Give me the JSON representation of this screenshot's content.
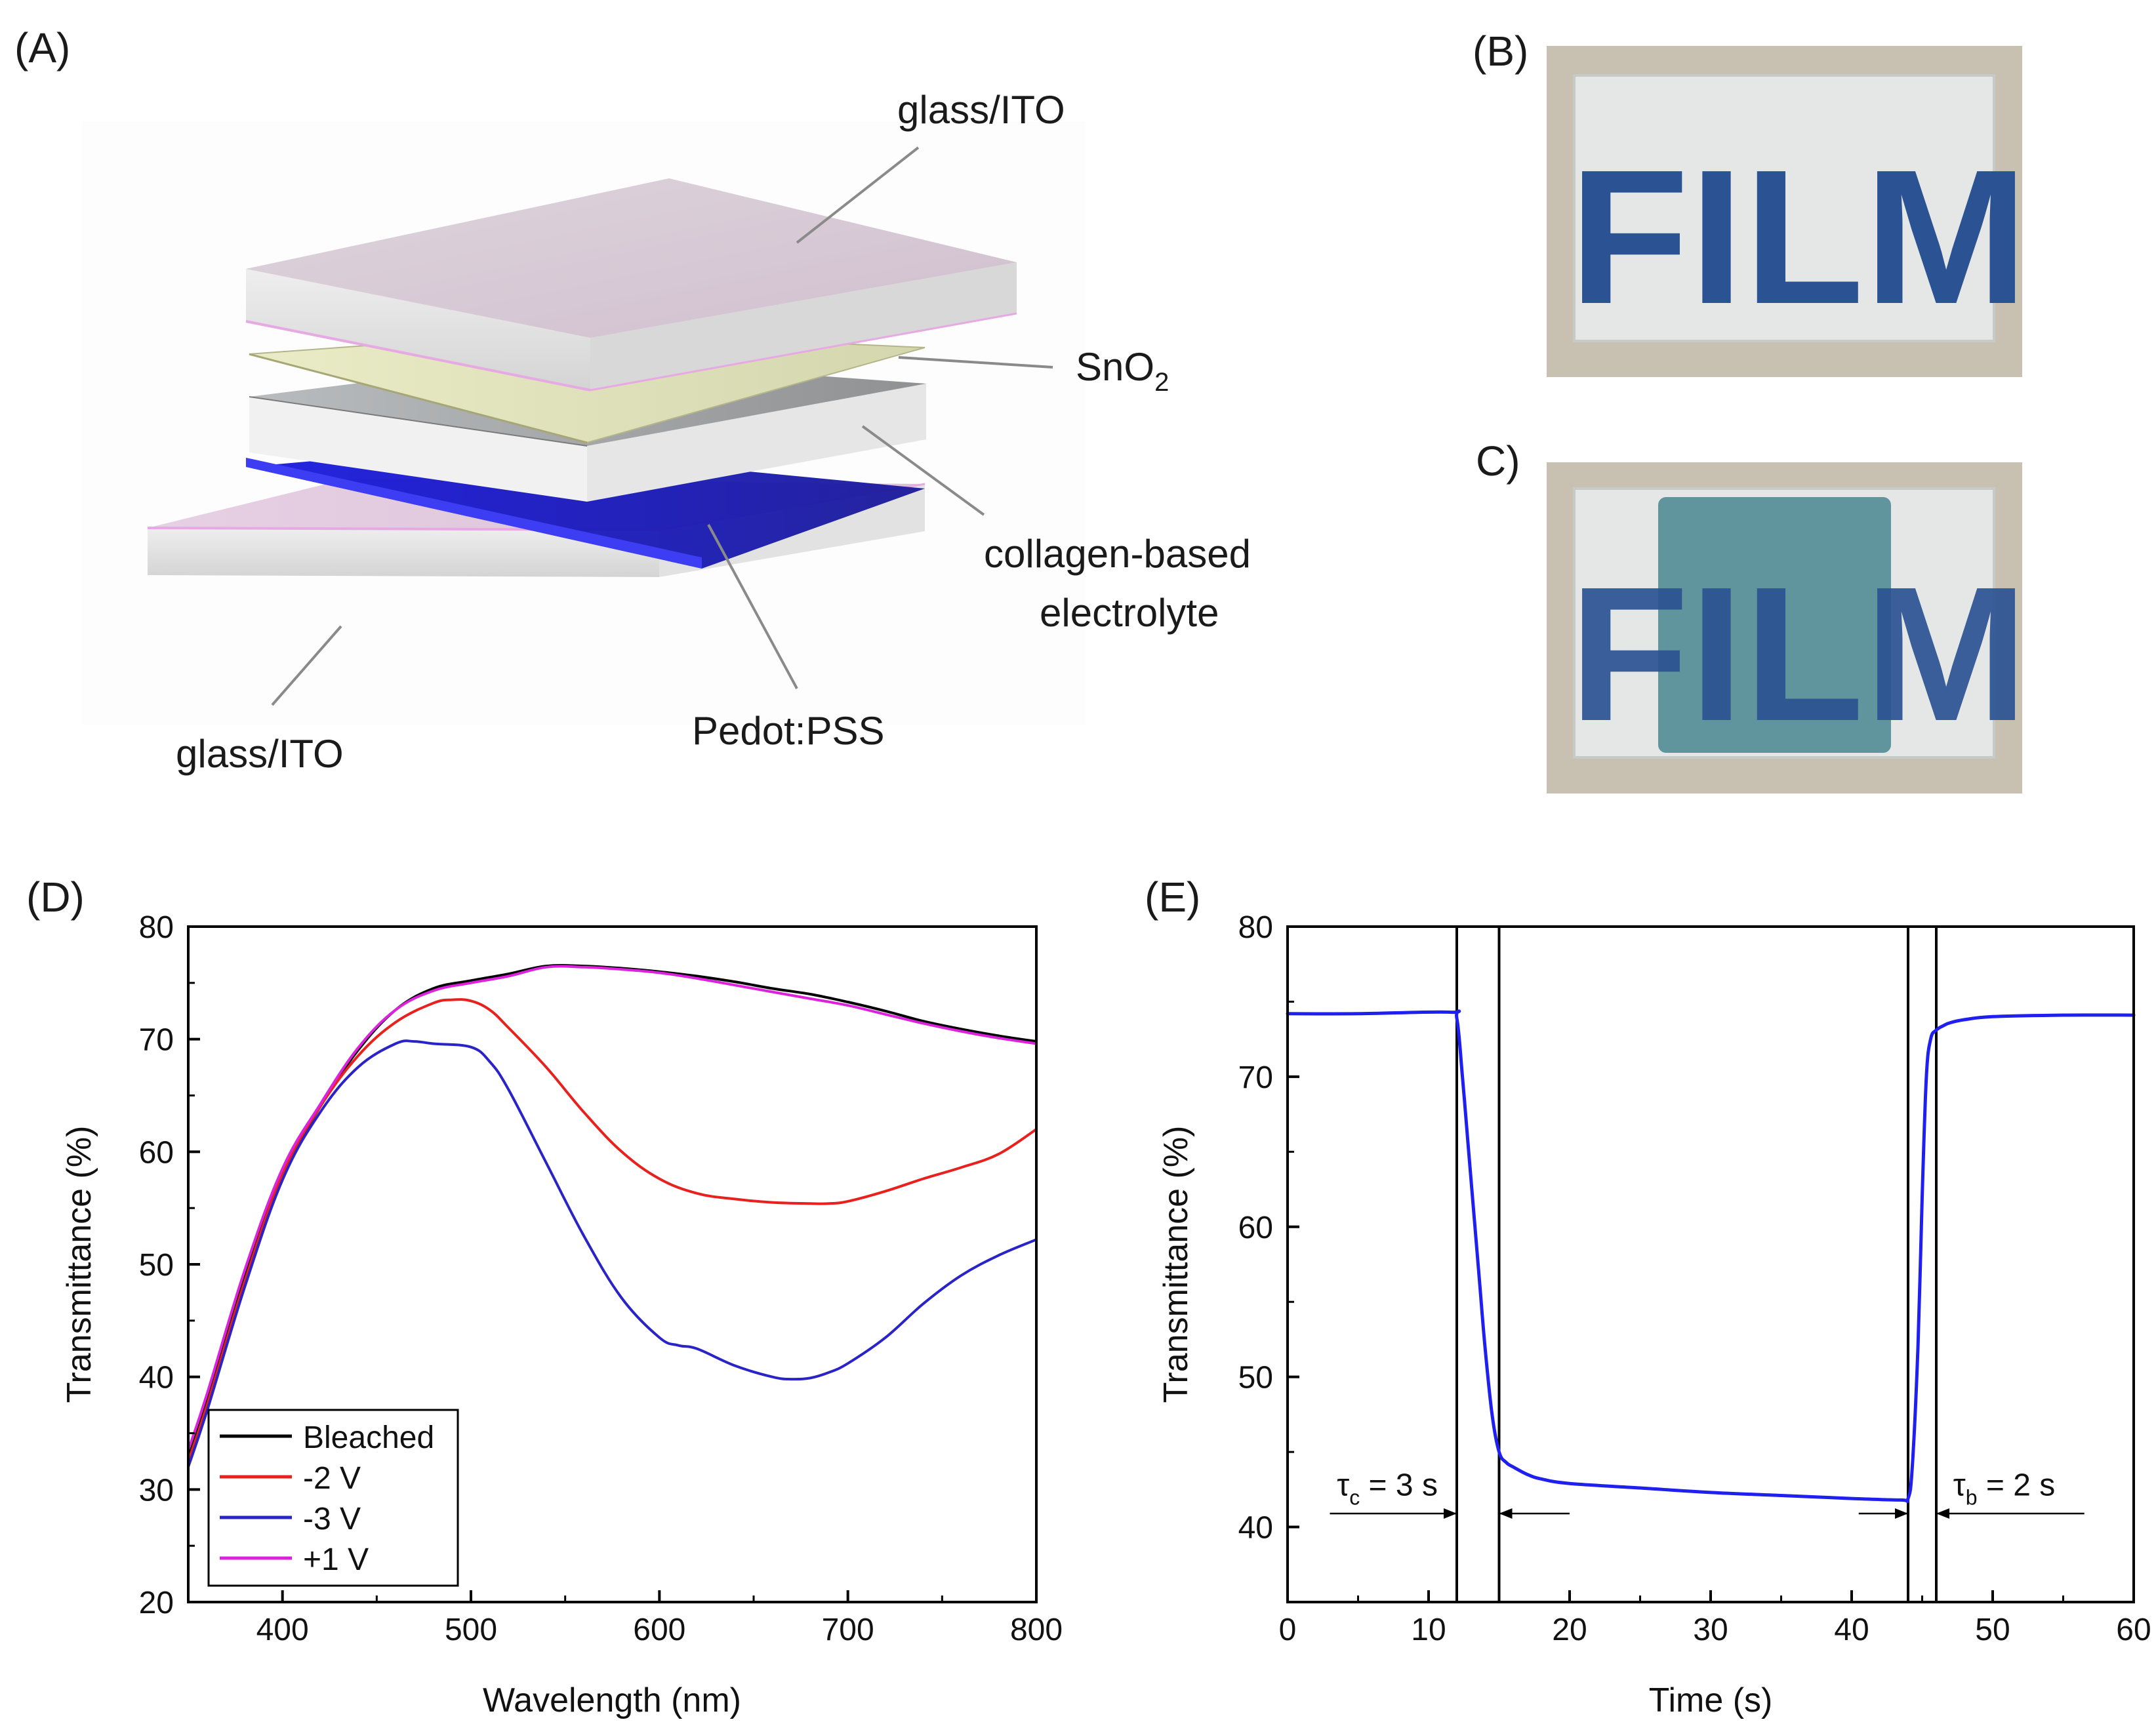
{
  "panels": {
    "a": "(A)",
    "b": "(B)",
    "c": "C)",
    "d": "(D)",
    "e": "(E)"
  },
  "diagram": {
    "labels": {
      "top_glass": "glass/ITO",
      "sno2": "SnO",
      "sno2_sub": "2",
      "electrolyte_line1": "collagen-based",
      "electrolyte_line2": "electrolyte",
      "pedot": "Pedot:PSS",
      "bottom_glass": "glass/ITO"
    }
  },
  "photos": {
    "b_text": "FILM",
    "c_text": "FILM"
  },
  "colors": {
    "black": "#000000",
    "red": "#e8201e",
    "blue": "#2a24c8",
    "magenta": "#dd22dd",
    "time_blue": "#1f1ff0",
    "photo_frame": "#cfc9b8",
    "photo_glass": "#e3e6e4",
    "photo_letters": "#2b5393",
    "photo_colored": "#4d8a94"
  },
  "chart_data": [
    {
      "type": "line",
      "title": "",
      "xlabel": "Wavelength (nm)",
      "ylabel": "Transmittance (%)",
      "xlim": [
        350,
        800
      ],
      "ylim": [
        20,
        80
      ],
      "xticks": [
        400,
        500,
        600,
        700,
        800
      ],
      "yticks": [
        20,
        30,
        40,
        50,
        60,
        70,
        80
      ],
      "legend_position": "bottom-left",
      "series": [
        {
          "name": "Bleached",
          "color": "#000000",
          "x": [
            350,
            360,
            380,
            400,
            420,
            440,
            460,
            480,
            500,
            520,
            540,
            560,
            580,
            600,
            620,
            640,
            660,
            680,
            700,
            720,
            740,
            760,
            780,
            800
          ],
          "y": [
            33,
            38,
            49,
            58,
            64,
            69,
            72.6,
            74.5,
            75.2,
            75.8,
            76.5,
            76.5,
            76.3,
            76,
            75.6,
            75.1,
            74.5,
            74,
            73.3,
            72.5,
            71.6,
            70.9,
            70.3,
            69.8
          ]
        },
        {
          "name": "-2 V",
          "color": "#e8201e",
          "x": [
            350,
            360,
            380,
            400,
            420,
            440,
            460,
            480,
            490,
            500,
            510,
            520,
            540,
            560,
            580,
            600,
            620,
            640,
            660,
            680,
            690,
            700,
            720,
            740,
            760,
            780,
            800
          ],
          "y": [
            32.5,
            37.5,
            48.5,
            58,
            64,
            68.5,
            71.5,
            73.2,
            73.5,
            73.4,
            72.6,
            71,
            67.5,
            63.5,
            60,
            57.6,
            56.3,
            55.8,
            55.5,
            55.4,
            55.4,
            55.6,
            56.5,
            57.6,
            58.6,
            59.8,
            62
          ]
        },
        {
          "name": "-3 V",
          "color": "#2a24c8",
          "x": [
            350,
            360,
            380,
            400,
            420,
            440,
            460,
            470,
            480,
            500,
            510,
            520,
            540,
            560,
            580,
            600,
            610,
            620,
            640,
            660,
            670,
            680,
            690,
            700,
            720,
            740,
            760,
            780,
            800
          ],
          "y": [
            32,
            37,
            48,
            57.5,
            63.5,
            67.5,
            69.6,
            69.8,
            69.6,
            69.3,
            68,
            65.5,
            59,
            52.5,
            47,
            43.5,
            42.8,
            42.5,
            41,
            40,
            39.8,
            39.9,
            40.4,
            41.2,
            43.5,
            46.5,
            49,
            50.8,
            52.2
          ]
        },
        {
          "name": "+1 V",
          "color": "#dd22dd",
          "x": [
            350,
            360,
            380,
            400,
            420,
            440,
            460,
            480,
            500,
            520,
            540,
            560,
            580,
            600,
            620,
            640,
            660,
            680,
            700,
            720,
            740,
            760,
            780,
            800
          ],
          "y": [
            33.5,
            38.5,
            49.5,
            58.5,
            64.2,
            69.2,
            72.6,
            74.3,
            75,
            75.6,
            76.4,
            76.4,
            76.2,
            75.9,
            75.4,
            74.8,
            74.2,
            73.6,
            73,
            72.2,
            71.4,
            70.7,
            70.1,
            69.6
          ]
        }
      ]
    },
    {
      "type": "line",
      "title": "",
      "xlabel": "Time (s)",
      "ylabel": "Transmittance (%)",
      "xlim": [
        0,
        60
      ],
      "ylim": [
        35,
        80
      ],
      "xticks": [
        0,
        10,
        20,
        30,
        40,
        50,
        60
      ],
      "yticks": [
        40,
        50,
        60,
        70,
        80
      ],
      "series": [
        {
          "name": "Transmittance",
          "color": "#1f1ff0",
          "x": [
            0,
            5,
            11.5,
            12,
            12.4,
            12.8,
            13.2,
            13.6,
            14,
            14.5,
            15,
            15.5,
            16,
            17,
            18,
            20,
            25,
            30,
            35,
            40,
            43.5,
            44,
            44.3,
            44.7,
            45,
            45.3,
            45.6,
            46,
            46.5,
            47,
            48,
            50,
            55,
            60
          ],
          "y": [
            74.2,
            74.2,
            74.3,
            73.9,
            70,
            65.5,
            61,
            56.5,
            52,
            47.5,
            45,
            44.3,
            44,
            43.5,
            43.2,
            42.9,
            42.6,
            42.3,
            42.1,
            41.9,
            41.8,
            41.9,
            44,
            52,
            62,
            70,
            72.5,
            73.1,
            73.4,
            73.6,
            73.8,
            74,
            74.1,
            74.1
          ]
        }
      ],
      "vertical_lines": [
        12,
        15,
        44,
        46
      ],
      "annotations": [
        {
          "label_symbol": "τ",
          "label_sub": "c",
          "label_rest": " = 3 s",
          "value_s": 3,
          "from_s": 12,
          "to_s": 15
        },
        {
          "label_symbol": "τ",
          "label_sub": "b",
          "label_rest": " = 2 s",
          "value_s": 2,
          "from_s": 44,
          "to_s": 46
        }
      ]
    }
  ]
}
